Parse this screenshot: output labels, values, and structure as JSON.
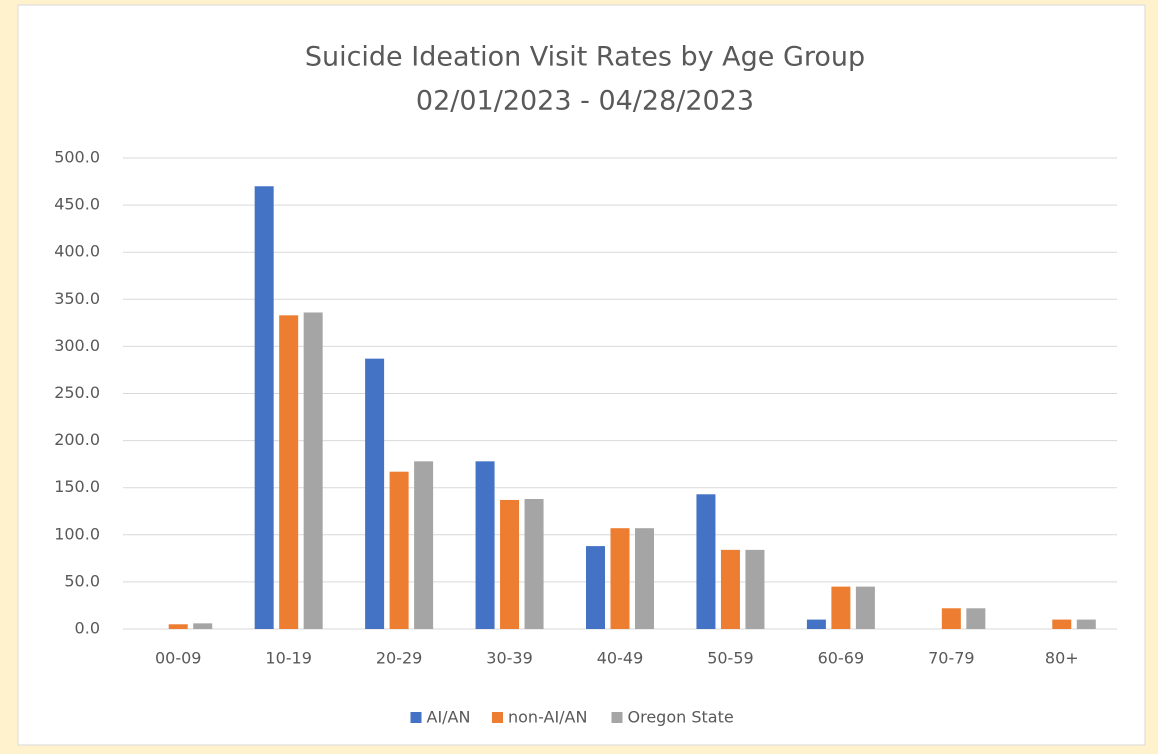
{
  "chart_data": {
    "type": "bar",
    "title": "Suicide Ideation Visit Rates by Age Group",
    "subtitle": "02/01/2023 - 04/28/2023",
    "categories": [
      "00-09",
      "10-19",
      "20-29",
      "30-39",
      "40-49",
      "50-59",
      "60-69",
      "70-79",
      "80+"
    ],
    "series": [
      {
        "name": "AI/AN",
        "color": "#4472c4",
        "values": [
          0,
          470,
          287,
          178,
          88,
          143,
          10,
          0,
          0
        ]
      },
      {
        "name": "non-AI/AN",
        "color": "#ed7d31",
        "values": [
          5,
          333,
          167,
          137,
          107,
          84,
          45,
          22,
          10
        ]
      },
      {
        "name": "Oregon State",
        "color": "#a5a5a5",
        "values": [
          6,
          336,
          178,
          138,
          107,
          84,
          45,
          22,
          10
        ]
      }
    ],
    "ylim": [
      0,
      500
    ],
    "yticks": [
      {
        "value": 0,
        "label": "0.0"
      },
      {
        "value": 50,
        "label": "50.0"
      },
      {
        "value": 100,
        "label": "100.0"
      },
      {
        "value": 150,
        "label": "150.0"
      },
      {
        "value": 200,
        "label": "200.0"
      },
      {
        "value": 250,
        "label": "250.0"
      },
      {
        "value": 300,
        "label": "300.0"
      },
      {
        "value": 350,
        "label": "350.0"
      },
      {
        "value": 400,
        "label": "400.0"
      },
      {
        "value": 450,
        "label": "450.0"
      },
      {
        "value": 500,
        "label": "500.0"
      }
    ],
    "grid": true,
    "legend": "bottom"
  }
}
